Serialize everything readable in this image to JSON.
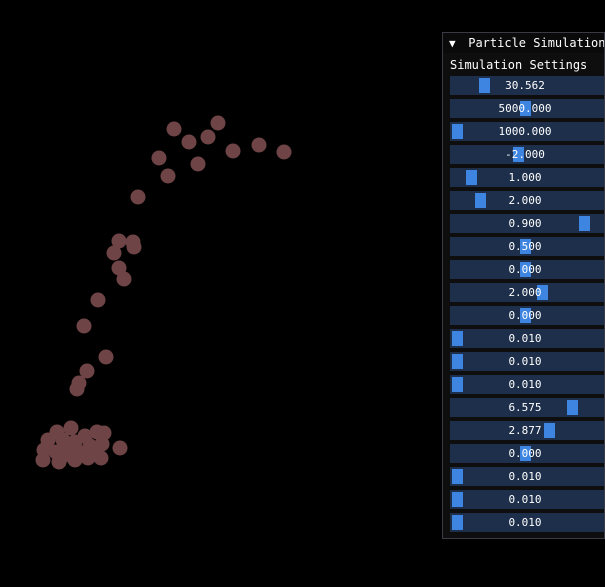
{
  "window": {
    "title": "Particle Simulation",
    "collapse_arrow": "▼"
  },
  "section_label": "Simulation Settings",
  "sliders": [
    {
      "display": "30.562",
      "fraction": 0.2
    },
    {
      "display": "5000.000",
      "fraction": 0.5
    },
    {
      "display": "1000.000",
      "fraction": 0.0
    },
    {
      "display": "-2.000",
      "fraction": 0.45
    },
    {
      "display": "1.000",
      "fraction": 0.1
    },
    {
      "display": "2.000",
      "fraction": 0.17
    },
    {
      "display": "0.900",
      "fraction": 0.94
    },
    {
      "display": "0.500",
      "fraction": 0.5
    },
    {
      "display": "0.000",
      "fraction": 0.5
    },
    {
      "display": "2.000",
      "fraction": 0.63
    },
    {
      "display": "0.000",
      "fraction": 0.5
    },
    {
      "display": "0.010",
      "fraction": 0.0
    },
    {
      "display": "0.010",
      "fraction": 0.0
    },
    {
      "display": "0.010",
      "fraction": 0.0
    },
    {
      "display": "6.575",
      "fraction": 0.85
    },
    {
      "display": "2.877",
      "fraction": 0.68
    },
    {
      "display": "0.000",
      "fraction": 0.5
    },
    {
      "display": "0.010",
      "fraction": 0.0
    },
    {
      "display": "0.010",
      "fraction": 0.0
    },
    {
      "display": "0.010",
      "fraction": 0.0
    }
  ],
  "colors": {
    "particle": "#6e4446",
    "slider_frame": "#1d2f4a",
    "slider_grab": "#3d85e0"
  }
}
